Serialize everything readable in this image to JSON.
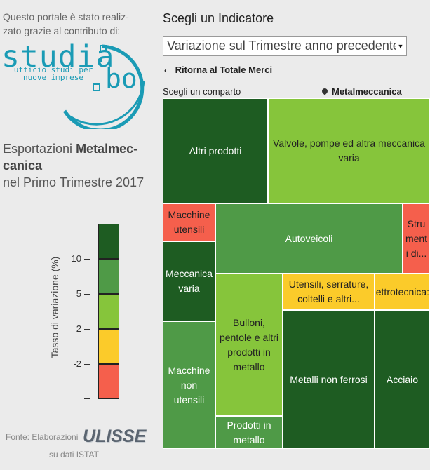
{
  "sidebar": {
    "credit": "Questo portale è stato realiz- zato grazie al contributo di:",
    "logo": {
      "word": "studia",
      "suffix": "bo",
      "subtitle": "ufficio studi per nuove imprese"
    },
    "title_prefix": "Esportazioni ",
    "title_bold": "Metalmec- canica",
    "title_suffix": "nel Primo Trimestre 2017",
    "legend": {
      "axis_title": "Tasso di variazione (%)",
      "ticks": [
        "10",
        "5",
        "2",
        "-2"
      ],
      "colors": [
        "#1e5c22",
        "#4f9a47",
        "#86c53b",
        "#fbcb2a",
        "#f55f4c"
      ]
    },
    "source": {
      "prefix": "Fonte: Elaborazioni",
      "brand": "ULISSE",
      "suffix": "su dati ISTAT"
    }
  },
  "main": {
    "indicator_heading": "Scegli un Indicatore",
    "indicator_select": "Variazione sul Trimestre anno precedente",
    "back_link": "Ritorna al Totale Merci",
    "comparto_label": "Scegli un comparto",
    "comparto_value": "Metalmeccanica"
  },
  "treemap": {
    "cells": [
      {
        "label": "Altri prodotti",
        "color": "dark"
      },
      {
        "label": "Valvole, pompe ed altra meccanica varia",
        "color": "light"
      },
      {
        "label": "Macchine utensili",
        "color": "red"
      },
      {
        "label": "Autoveicoli",
        "color": "mid"
      },
      {
        "label": "Stru ment i di...",
        "color": "red"
      },
      {
        "label": "Meccanica varia",
        "color": "dark"
      },
      {
        "label": "Bulloni, pentole e altri prodotti in metallo",
        "color": "light"
      },
      {
        "label": "Utensili, serrature, coltelli e altri...",
        "color": "yellow"
      },
      {
        "label": "Elettrotecnica:...",
        "color": "yellow"
      },
      {
        "label": "Macchine non utensili",
        "color": "mid"
      },
      {
        "label": "Metalli non ferrosi",
        "color": "dark"
      },
      {
        "label": "Acciaio",
        "color": "dark"
      },
      {
        "label": "Prodotti in metallo",
        "color": "mid"
      }
    ]
  }
}
